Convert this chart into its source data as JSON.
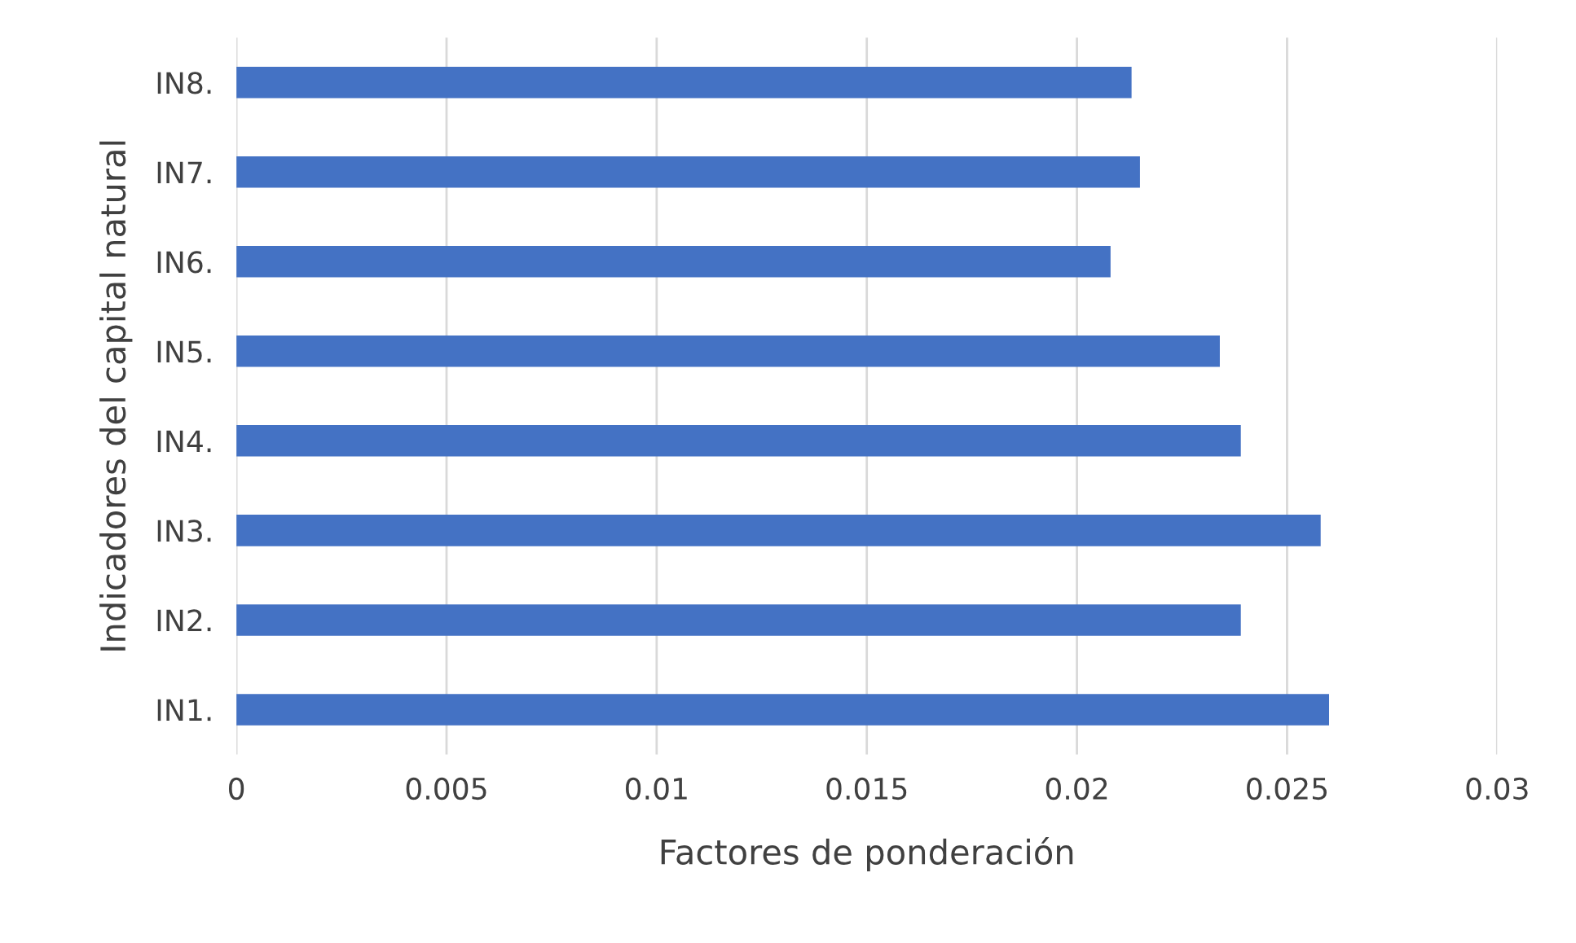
{
  "chart_data": {
    "type": "bar",
    "orientation": "horizontal",
    "xlabel": "Factores de ponderación",
    "ylabel": "Indicadores del capital natural",
    "categories": [
      "IN8.",
      "IN7.",
      "IN6.",
      "IN5.",
      "IN4.",
      "IN3.",
      "IN2.",
      "IN1."
    ],
    "values": [
      0.0213,
      0.0215,
      0.0208,
      0.0234,
      0.0239,
      0.0258,
      0.0239,
      0.026
    ],
    "color": "#4472c4",
    "xlim": [
      0,
      0.03
    ],
    "xticks": [
      0,
      0.005,
      0.01,
      0.015,
      0.02,
      0.025,
      0.03
    ],
    "grid": "x"
  }
}
